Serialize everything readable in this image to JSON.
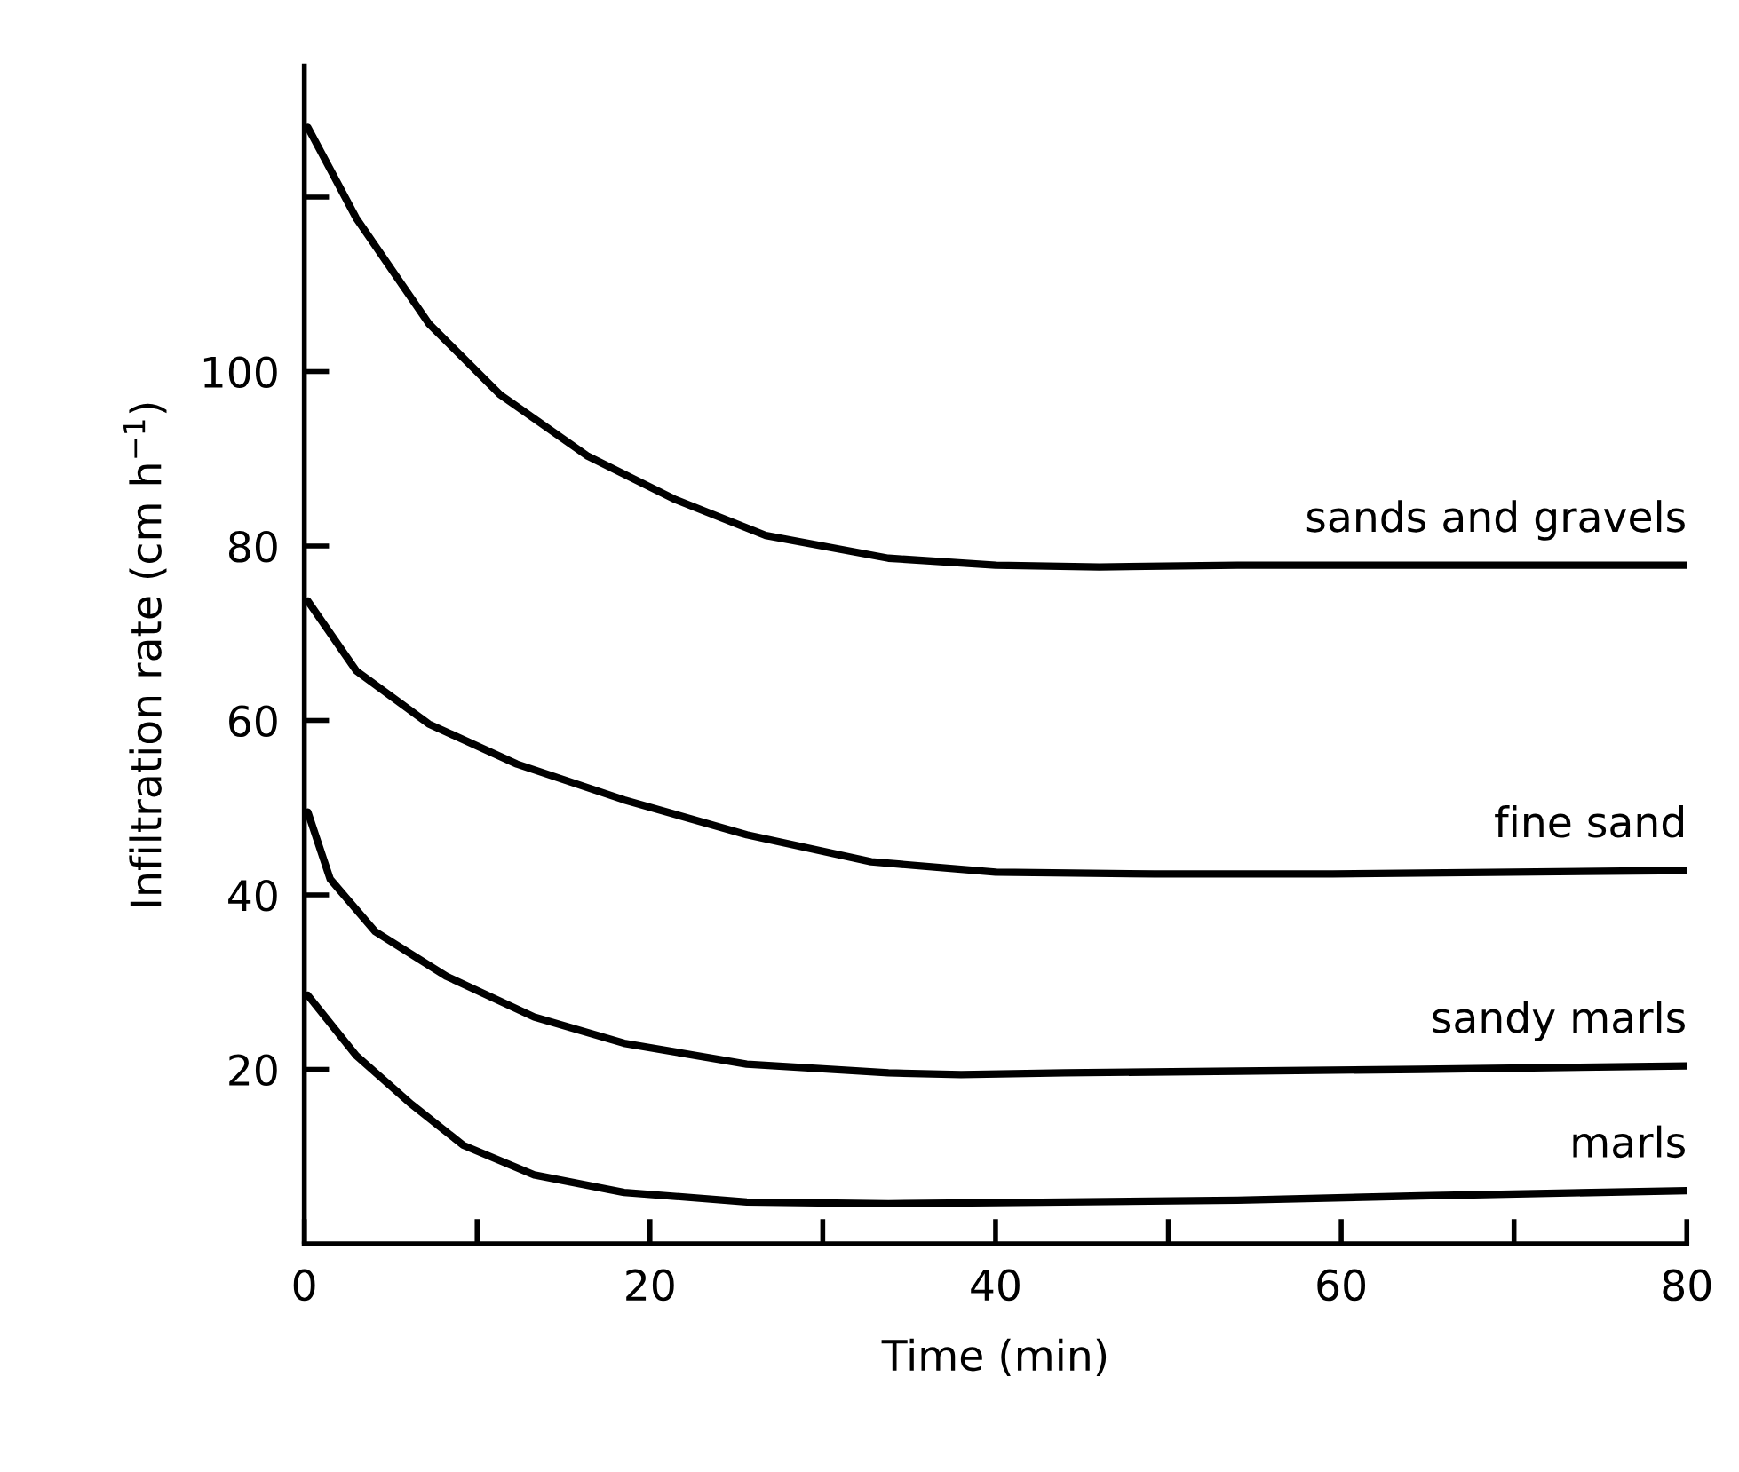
{
  "chart_data": {
    "type": "line",
    "xlabel": "Time (min)",
    "ylabel": "Infiltration rate (cm h$^{−1}$)",
    "xlim": [
      0,
      80
    ],
    "ylim": [
      0,
      135
    ],
    "xticks": [
      0,
      {
        "value": 10,
        "label": null
      },
      20,
      {
        "value": 30,
        "label": null
      },
      40,
      {
        "value": 50,
        "label": null
      },
      60,
      {
        "value": 70,
        "label": null
      },
      80
    ],
    "yticks": [
      20,
      40,
      60,
      80,
      100,
      {
        "value": 120,
        "label": null
      }
    ],
    "grid": false,
    "legend": false,
    "marker": "none",
    "line_style": "solid",
    "series": [
      {
        "name": "sands and gravels",
        "color": "#000000",
        "x": [
          0.2,
          3,
          7.2,
          11.3,
          16.4,
          21.5,
          26.7,
          33.8,
          40,
          46,
          54,
          64.6,
          80
        ],
        "values": [
          128,
          117.6,
          105.5,
          97.4,
          90.3,
          85.3,
          81.2,
          78.6,
          77.8,
          77.6,
          77.8,
          77.8,
          77.8
        ]
      },
      {
        "name": "fine sand",
        "color": "#000000",
        "x": [
          0.2,
          3,
          7.2,
          12.3,
          18.5,
          25.6,
          32.8,
          40,
          49.2,
          59.5,
          80
        ],
        "values": [
          73.7,
          65.7,
          59.6,
          55,
          50.9,
          46.9,
          43.8,
          42.6,
          42.4,
          42.4,
          42.8
        ]
      },
      {
        "name": "sandy marls",
        "color": "#000000",
        "x": [
          0.2,
          1.5,
          4.1,
          8.2,
          13.3,
          18.5,
          25.6,
          33.8,
          38,
          44,
          54,
          64.6,
          80
        ],
        "values": [
          49.5,
          41.8,
          35.8,
          30.7,
          26,
          23,
          20.6,
          19.6,
          19.4,
          19.6,
          19.8,
          20,
          20.4
        ]
      },
      {
        "name": "marls",
        "color": "#000000",
        "x": [
          0.2,
          3,
          6.2,
          9.2,
          13.3,
          18.5,
          25.6,
          33.8,
          44,
          54,
          64.6,
          80
        ],
        "values": [
          28.5,
          21.6,
          16,
          11.3,
          7.9,
          5.9,
          4.8,
          4.6,
          4.8,
          5,
          5.5,
          6.1
        ]
      }
    ]
  }
}
